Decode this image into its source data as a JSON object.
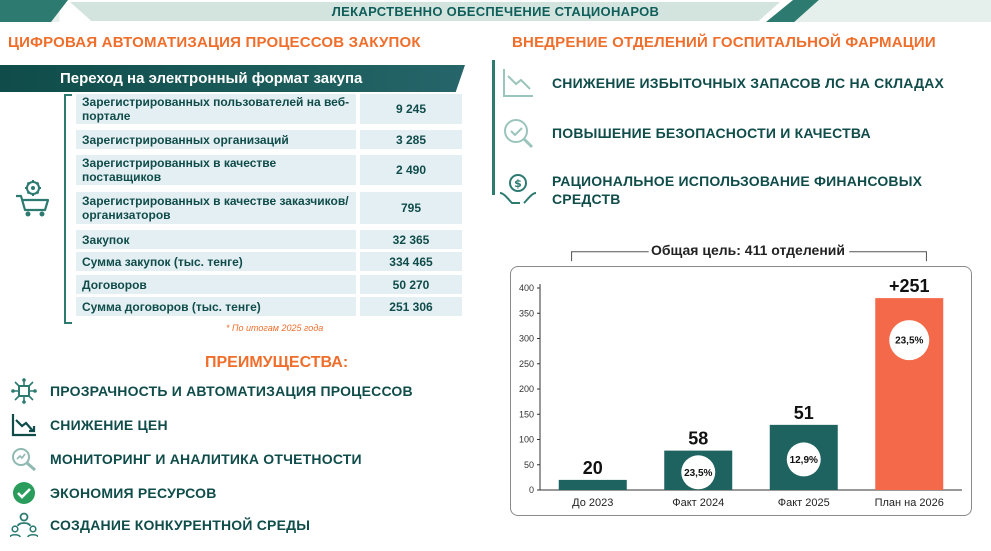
{
  "header": {
    "title": "ЛЕКАРСТВЕННО ОБЕСПЕЧЕНИЕ СТАЦИОНАРОВ"
  },
  "left": {
    "title": "ЦИФРОВАЯ АВТОМАТИЗАЦИЯ ПРОЦЕССОВ ЗАКУПОК",
    "table_title": "Переход на электронный формат закупа",
    "rows": [
      {
        "label": "Зарегистрированных пользователей на веб-портале",
        "value": "9 245"
      },
      {
        "label": "Зарегистрированных организаций",
        "value": "3 285"
      },
      {
        "label": "Зарегистрированных в качестве поставщиков",
        "value": "2 490"
      },
      {
        "label": "Зарегистрированных в качестве заказчиков/организаторов",
        "value": "795"
      },
      {
        "label": "Закупок",
        "value": "32 365"
      },
      {
        "label": "Сумма закупок (тыс. тенге)",
        "value": "334 465"
      },
      {
        "label": "Договоров",
        "value": "50 270"
      },
      {
        "label": "Сумма договоров (тыс. тенге)",
        "value": "251 306"
      }
    ],
    "footnote": "* По итогам 2025 года",
    "advantages_title": "ПРЕИМУЩЕСТВА:",
    "advantages": [
      {
        "label": "ПРОЗРАЧНОСТЬ И АВТОМАТИЗАЦИЯ ПРОЦЕССОВ",
        "icon": "network-chip-icon"
      },
      {
        "label": "СНИЖЕНИЕ ЦЕН",
        "icon": "trend-down-icon"
      },
      {
        "label": "МОНИТОРИНГ И АНАЛИТИКА ОТЧЕТНОСТИ",
        "icon": "magnifier-chart-icon"
      },
      {
        "label": "ЭКОНОМИЯ РЕСУРСОВ",
        "icon": "check-circle-icon"
      },
      {
        "label": "СОЗДАНИЕ КОНКУРЕНТНОЙ СРЕДЫ",
        "icon": "people-network-icon"
      }
    ]
  },
  "right": {
    "title": "ВНЕДРЕНИЕ ОТДЕЛЕНИЙ ГОСПИТАЛЬНОЙ ФАРМАЦИИ",
    "items": [
      {
        "label": "СНИЖЕНИЕ ИЗБЫТОЧНЫХ ЗАПАСОВ ЛС НА СКЛАДАХ",
        "icon": "trend-down-icon"
      },
      {
        "label": "ПОВЫШЕНИЕ БЕЗОПАСНОСТИ И КАЧЕСТВА",
        "icon": "quality-check-icon"
      },
      {
        "label": "РАЦИОНАЛЬНОЕ ИСПОЛЬЗОВАНИЕ ФИНАНСОВЫХ СРЕДСТВ",
        "icon": "money-hands-icon"
      }
    ],
    "goal": "Общая цель: 411 отделений"
  },
  "colors": {
    "teal_dark": "#0f4c4a",
    "teal": "#2d7b70",
    "orange": "#ef6e2b",
    "bar_teal": "#1f6360",
    "bar_orange": "#f4694a"
  },
  "chart_data": {
    "type": "bar",
    "categories": [
      "До 2023",
      "Факт 2024",
      "Факт 2025",
      "План на 2026"
    ],
    "values": [
      20,
      78,
      129,
      380
    ],
    "data_labels": [
      "20",
      "58",
      "51",
      "+251"
    ],
    "inner_labels": [
      "",
      "23,5%",
      "12,9%",
      "23,5%"
    ],
    "bar_colors": [
      "#1f6360",
      "#1f6360",
      "#1f6360",
      "#f4694a"
    ],
    "ylim": [
      0,
      400
    ],
    "yticks": [
      0,
      50,
      100,
      150,
      200,
      250,
      300,
      350,
      400
    ],
    "grid": false
  }
}
